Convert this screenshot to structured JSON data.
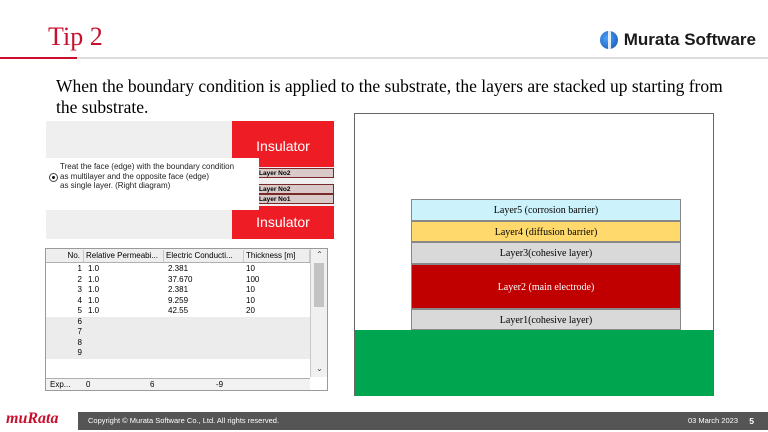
{
  "header": {
    "title": "Tip 2",
    "brand": "Murata Software",
    "brand_icon": "globe-logo-icon"
  },
  "body_text": "When the boundary condition is applied to the substrate, the layers are stacked up starting from the substrate.",
  "dialog": {
    "insulator_top": "Insulator",
    "insulator_bottom": "Insulator",
    "layer_no2_top": "Layer No2",
    "layer_no2": "Layer No2",
    "layer_no1": "Layer No1",
    "option_line1": "Treat the face (edge) with the boundary condition",
    "option_line2": "as multilayer and the opposite face (edge)",
    "option_line3": "as single layer. (Right diagram)"
  },
  "grid": {
    "columns": [
      "No.",
      "Relative Permeabi...",
      "Electric Conducti...",
      "Thickness [m]"
    ],
    "rows": [
      {
        "no": "1",
        "perm": "1.0",
        "cond": "2.381",
        "thick": "10"
      },
      {
        "no": "2",
        "perm": "1.0",
        "cond": "37.670",
        "thick": "100"
      },
      {
        "no": "3",
        "perm": "1.0",
        "cond": "2.381",
        "thick": "10"
      },
      {
        "no": "4",
        "perm": "1.0",
        "cond": "9.259",
        "thick": "10"
      },
      {
        "no": "5",
        "perm": "1.0",
        "cond": "42.55",
        "thick": "20"
      },
      {
        "no": "6",
        "perm": "",
        "cond": "",
        "thick": ""
      },
      {
        "no": "7",
        "perm": "",
        "cond": "",
        "thick": ""
      },
      {
        "no": "8",
        "perm": "",
        "cond": "",
        "thick": ""
      },
      {
        "no": "9",
        "perm": "",
        "cond": "",
        "thick": ""
      }
    ],
    "footer": {
      "label": "Exp...",
      "a": "0",
      "b": "6",
      "c": "-9"
    }
  },
  "diagram": {
    "layers": [
      {
        "label": "Layer5 (corrosion barrier)",
        "color": "#ccf2fc"
      },
      {
        "label": "Layer4 (diffusion barrier)",
        "color": "#ffd96b"
      },
      {
        "label": "Layer3(cohesive layer)",
        "color": "#d9d9d9"
      },
      {
        "label": "Layer2 (main electrode)",
        "color": "#c00000"
      },
      {
        "label": "Layer1(cohesive layer)",
        "color": "#d9d9d9"
      }
    ],
    "substrate_color": "#00a550"
  },
  "footer": {
    "logo": "muRata",
    "copyright": "Copyright © Murata Software Co., Ltd. All rights reserved.",
    "date": "03 March 2023",
    "page": "5"
  },
  "colors": {
    "accent": "#c8102e",
    "insulator": "#ee1c25",
    "footer_bar": "#555555"
  }
}
